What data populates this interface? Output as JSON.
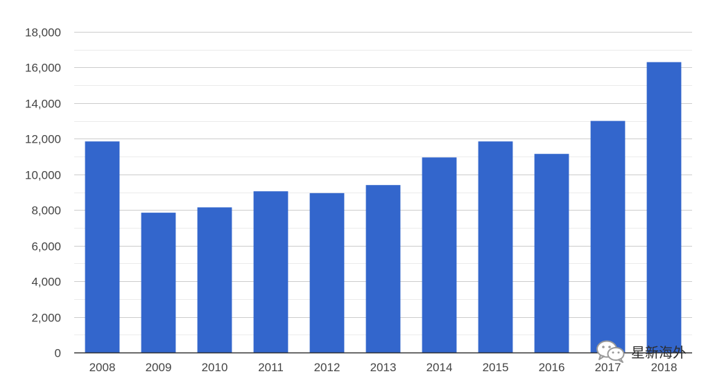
{
  "chart_data": {
    "type": "bar",
    "categories": [
      "2008",
      "2009",
      "2010",
      "2011",
      "2012",
      "2013",
      "2014",
      "2015",
      "2016",
      "2017",
      "2018"
    ],
    "values": [
      11850,
      7850,
      8150,
      9050,
      8950,
      9400,
      10950,
      11850,
      11150,
      13000,
      16300
    ],
    "ylim": [
      0,
      18000
    ],
    "yticks": [
      0,
      2000,
      4000,
      6000,
      8000,
      10000,
      12000,
      14000,
      16000,
      18000
    ],
    "ytick_labels": [
      "0",
      "2,000",
      "4,000",
      "6,000",
      "8,000",
      "10,000",
      "12,000",
      "14,000",
      "16,000",
      "18,000"
    ],
    "bar_color": "#3366cc",
    "gridline_color": "#cccccc",
    "minor_gridline_color": "#ebebeb",
    "grid": true,
    "legend": "none"
  },
  "watermark": {
    "icon": "wechat-icon",
    "text": "星新海外"
  }
}
